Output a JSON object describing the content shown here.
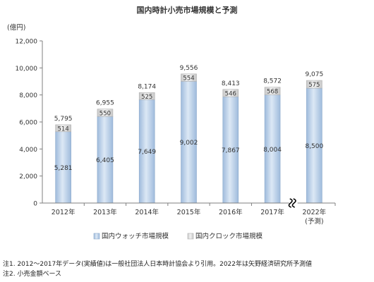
{
  "chart_data": {
    "type": "bar",
    "stacked": true,
    "title": "国内時計小売市場規模と予測",
    "ylabel": "(億円)",
    "ylim": [
      0,
      12000
    ],
    "yticks": [
      "0",
      "2,000",
      "4,000",
      "6,000",
      "8,000",
      "10,000",
      "12,000"
    ],
    "ytick_values": [
      0,
      2000,
      4000,
      6000,
      8000,
      10000,
      12000
    ],
    "grid": false,
    "legend_position": "bottom",
    "categories": [
      "2012年",
      "2013年",
      "2014年",
      "2015年",
      "2016年",
      "2017年",
      "2022年"
    ],
    "category_sublabels": [
      "",
      "",
      "",
      "",
      "",
      "",
      "(予測)"
    ],
    "axis_break_before_index": 6,
    "series": [
      {
        "name": "国内ウォッチ市場規模",
        "values": [
          5281,
          6405,
          7649,
          9002,
          7867,
          8004,
          8500
        ],
        "labels": [
          "5,281",
          "6,405",
          "7,649",
          "9,002",
          "7,867",
          "8,004",
          "8,500"
        ]
      },
      {
        "name": "国内クロック市場規模",
        "values": [
          514,
          550,
          525,
          554,
          546,
          568,
          575
        ],
        "labels": [
          "514",
          "550",
          "525",
          "554",
          "546",
          "568",
          "575"
        ]
      }
    ],
    "totals": [
      5795,
      6955,
      8174,
      9556,
      8413,
      8572,
      9075
    ],
    "total_labels": [
      "5,795",
      "6,955",
      "8,174",
      "9,556",
      "8,413",
      "8,572",
      "9,075"
    ],
    "colors": {
      "watch": "#b8cce4",
      "watch_dark": "#95b3d7",
      "clock": "#d9d9d9",
      "axis": "#7f7f7f"
    }
  },
  "notes": [
    "注1. 2012～2017年データ(実績値)は一般社団法人日本時計協会より引用。2022年は矢野経済研究所予測値",
    "注2. 小売金額ベース"
  ]
}
